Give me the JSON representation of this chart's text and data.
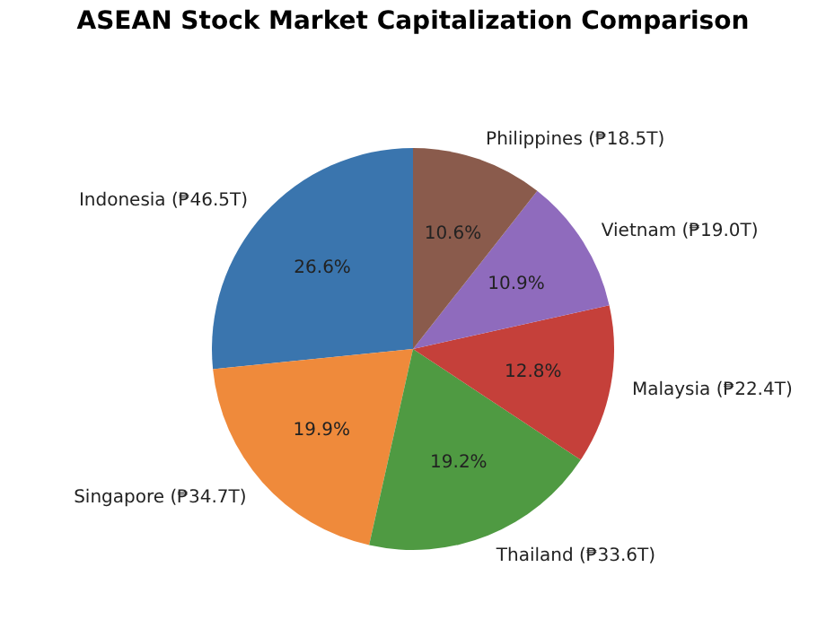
{
  "chart_data": {
    "type": "pie",
    "title": "ASEAN Stock Market Capitalization Comparison",
    "categories": [
      "Indonesia (₱46.5T)",
      "Singapore (₱34.7T)",
      "Thailand (₱33.6T)",
      "Malaysia (₱22.4T)",
      "Vietnam (₱19.0T)",
      "Philippines (₱18.5T)"
    ],
    "values": [
      26.6,
      19.9,
      19.2,
      12.8,
      10.9,
      10.6
    ],
    "value_labels": [
      "26.6%",
      "19.9%",
      "19.2%",
      "12.8%",
      "10.9%",
      "10.6%"
    ],
    "colors": [
      "#3a75ae",
      "#ef8a3b",
      "#4f9a42",
      "#c5403a",
      "#8f6bbd",
      "#8a5b4c"
    ],
    "legend": false
  }
}
